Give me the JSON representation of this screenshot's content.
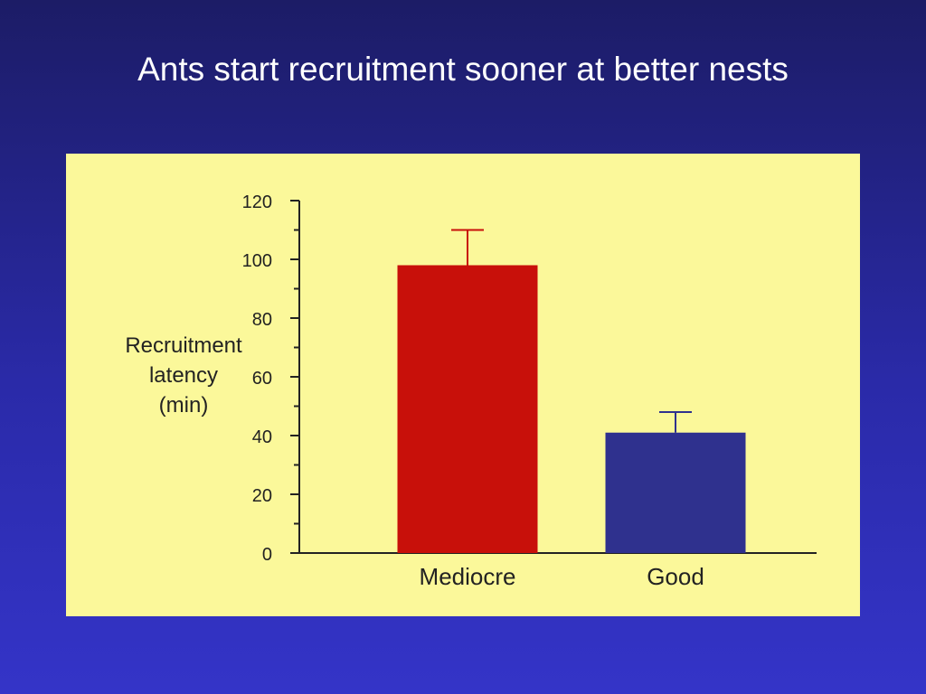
{
  "slide": {
    "title": "Ants start recruitment sooner at better nests"
  },
  "colors": {
    "background_top": "#1c1c66",
    "background_bottom": "#3434c8",
    "panel": "#fbf89a",
    "axis": "#222222"
  },
  "chart_data": {
    "type": "bar",
    "title": "",
    "xlabel": "",
    "ylabel_lines": [
      "Recruitment",
      "latency",
      "(min)"
    ],
    "categories": [
      "Mediocre",
      "Good"
    ],
    "values": [
      98,
      41
    ],
    "error_upper": [
      110,
      48
    ],
    "bar_colors": [
      "#c8100a",
      "#2f318e"
    ],
    "ylim": [
      0,
      120
    ],
    "yticks": [
      0,
      20,
      40,
      60,
      80,
      100,
      120
    ],
    "yminor_step": 10,
    "grid": false,
    "legend": "none"
  }
}
